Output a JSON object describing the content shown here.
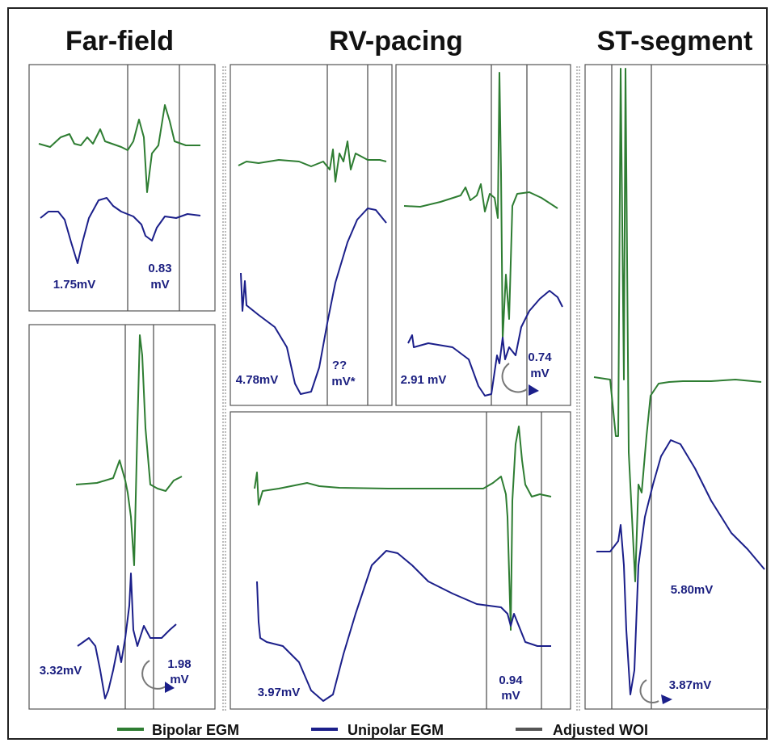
{
  "columns": [
    {
      "title": "Far-field"
    },
    {
      "title": "RV-pacing"
    },
    {
      "title": "ST-segment"
    }
  ],
  "panels": [
    {
      "labels": [
        [
          "1.75mV"
        ],
        [
          "0.83",
          "mV"
        ]
      ]
    },
    {
      "labels": [
        [
          "3.32mV"
        ],
        [
          "1.98",
          "mV"
        ]
      ]
    },
    {
      "labels": [
        [
          "4.78mV"
        ],
        [
          "??",
          "mV*"
        ]
      ]
    },
    {
      "labels": [
        [
          "2.91 mV"
        ],
        [
          "0.74",
          "mV"
        ]
      ]
    },
    {
      "labels": [
        [
          "3.97mV"
        ],
        [
          "0.94",
          "mV"
        ]
      ]
    },
    {
      "labels": [
        [
          "5.80mV"
        ],
        [
          "3.87mV"
        ]
      ]
    }
  ],
  "legend": [
    {
      "label": "Bipolar EGM"
    },
    {
      "label": "Unipolar EGM"
    },
    {
      "label": "Adjusted WOI"
    }
  ]
}
